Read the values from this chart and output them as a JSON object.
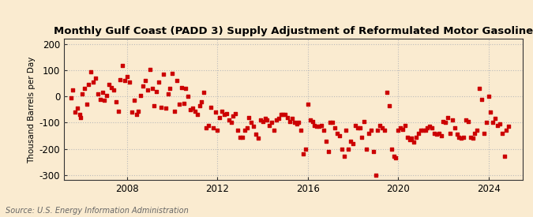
{
  "title": "Monthly Gulf Coast (PADD 3) Supply Adjustment of Reformulated Motor Gasoline",
  "ylabel": "Thousand Barrels per Day",
  "source": "Source: U.S. Energy Information Administration",
  "background_color": "#faebd0",
  "dot_color": "#cc0000",
  "grid_color": "#bbbbbb",
  "ylim": [
    -320,
    220
  ],
  "yticks": [
    -300,
    -200,
    -100,
    0,
    100,
    200
  ],
  "xlim_start": 2005.2,
  "xlim_end": 2025.5,
  "xticks": [
    2008,
    2012,
    2016,
    2020,
    2024
  ],
  "data": [
    [
      2005.5,
      -5
    ],
    [
      2005.6,
      25
    ],
    [
      2005.7,
      -60
    ],
    [
      2005.8,
      -45
    ],
    [
      2005.9,
      -70
    ],
    [
      2005.95,
      -80
    ],
    [
      2006.0,
      10
    ],
    [
      2006.1,
      30
    ],
    [
      2006.2,
      -30
    ],
    [
      2006.3,
      45
    ],
    [
      2006.4,
      95
    ],
    [
      2006.5,
      55
    ],
    [
      2006.6,
      70
    ],
    [
      2006.7,
      10
    ],
    [
      2006.8,
      -10
    ],
    [
      2006.9,
      15
    ],
    [
      2007.0,
      -15
    ],
    [
      2007.1,
      5
    ],
    [
      2007.2,
      45
    ],
    [
      2007.3,
      35
    ],
    [
      2007.4,
      25
    ],
    [
      2007.5,
      -20
    ],
    [
      2007.6,
      -55
    ],
    [
      2007.7,
      65
    ],
    [
      2007.8,
      120
    ],
    [
      2007.9,
      60
    ],
    [
      2008.0,
      75
    ],
    [
      2008.1,
      55
    ],
    [
      2008.2,
      -60
    ],
    [
      2008.3,
      -15
    ],
    [
      2008.4,
      -70
    ],
    [
      2008.5,
      -55
    ],
    [
      2008.6,
      5
    ],
    [
      2008.7,
      40
    ],
    [
      2008.8,
      60
    ],
    [
      2008.9,
      25
    ],
    [
      2009.0,
      105
    ],
    [
      2009.1,
      30
    ],
    [
      2009.2,
      -35
    ],
    [
      2009.3,
      20
    ],
    [
      2009.4,
      55
    ],
    [
      2009.5,
      -40
    ],
    [
      2009.6,
      85
    ],
    [
      2009.7,
      -45
    ],
    [
      2009.8,
      10
    ],
    [
      2009.9,
      30
    ],
    [
      2010.0,
      90
    ],
    [
      2010.1,
      -55
    ],
    [
      2010.2,
      60
    ],
    [
      2010.3,
      -30
    ],
    [
      2010.4,
      35
    ],
    [
      2010.5,
      -25
    ],
    [
      2010.6,
      30
    ],
    [
      2010.7,
      0
    ],
    [
      2010.8,
      -50
    ],
    [
      2010.9,
      -45
    ],
    [
      2011.0,
      -55
    ],
    [
      2011.1,
      -70
    ],
    [
      2011.2,
      -35
    ],
    [
      2011.3,
      -20
    ],
    [
      2011.4,
      15
    ],
    [
      2011.5,
      -120
    ],
    [
      2011.6,
      -110
    ],
    [
      2011.7,
      -40
    ],
    [
      2011.8,
      -120
    ],
    [
      2011.9,
      -60
    ],
    [
      2012.0,
      -130
    ],
    [
      2012.1,
      -80
    ],
    [
      2012.2,
      -55
    ],
    [
      2012.3,
      -70
    ],
    [
      2012.4,
      -65
    ],
    [
      2012.5,
      -90
    ],
    [
      2012.6,
      -100
    ],
    [
      2012.7,
      -75
    ],
    [
      2012.8,
      -65
    ],
    [
      2012.9,
      -130
    ],
    [
      2013.0,
      -155
    ],
    [
      2013.1,
      -155
    ],
    [
      2013.2,
      -130
    ],
    [
      2013.3,
      -120
    ],
    [
      2013.4,
      -80
    ],
    [
      2013.5,
      -100
    ],
    [
      2013.6,
      -115
    ],
    [
      2013.7,
      -145
    ],
    [
      2013.8,
      -160
    ],
    [
      2013.9,
      -90
    ],
    [
      2014.0,
      -95
    ],
    [
      2014.1,
      -85
    ],
    [
      2014.2,
      -90
    ],
    [
      2014.3,
      -110
    ],
    [
      2014.4,
      -100
    ],
    [
      2014.5,
      -130
    ],
    [
      2014.6,
      -90
    ],
    [
      2014.7,
      -85
    ],
    [
      2014.8,
      -70
    ],
    [
      2014.9,
      -70
    ],
    [
      2015.0,
      -70
    ],
    [
      2015.1,
      -80
    ],
    [
      2015.2,
      -95
    ],
    [
      2015.3,
      -85
    ],
    [
      2015.4,
      -100
    ],
    [
      2015.5,
      -105
    ],
    [
      2015.6,
      -100
    ],
    [
      2015.7,
      -130
    ],
    [
      2015.8,
      -220
    ],
    [
      2015.9,
      -200
    ],
    [
      2016.0,
      -30
    ],
    [
      2016.1,
      -90
    ],
    [
      2016.2,
      -95
    ],
    [
      2016.3,
      -110
    ],
    [
      2016.4,
      -115
    ],
    [
      2016.5,
      -115
    ],
    [
      2016.6,
      -110
    ],
    [
      2016.7,
      -130
    ],
    [
      2016.8,
      -170
    ],
    [
      2016.9,
      -210
    ],
    [
      2017.0,
      -100
    ],
    [
      2017.1,
      -100
    ],
    [
      2017.2,
      -120
    ],
    [
      2017.3,
      -140
    ],
    [
      2017.4,
      -150
    ],
    [
      2017.5,
      -200
    ],
    [
      2017.6,
      -230
    ],
    [
      2017.7,
      -130
    ],
    [
      2017.8,
      -200
    ],
    [
      2017.9,
      -170
    ],
    [
      2018.0,
      -180
    ],
    [
      2018.1,
      -110
    ],
    [
      2018.2,
      -120
    ],
    [
      2018.3,
      -120
    ],
    [
      2018.4,
      -155
    ],
    [
      2018.5,
      -95
    ],
    [
      2018.6,
      -200
    ],
    [
      2018.7,
      -140
    ],
    [
      2018.8,
      -130
    ],
    [
      2018.9,
      -210
    ],
    [
      2019.0,
      -300
    ],
    [
      2019.1,
      -130
    ],
    [
      2019.2,
      -110
    ],
    [
      2019.3,
      -120
    ],
    [
      2019.4,
      -130
    ],
    [
      2019.5,
      15
    ],
    [
      2019.6,
      -35
    ],
    [
      2019.7,
      -200
    ],
    [
      2019.8,
      -230
    ],
    [
      2019.9,
      -235
    ],
    [
      2020.0,
      -130
    ],
    [
      2020.1,
      -120
    ],
    [
      2020.2,
      -125
    ],
    [
      2020.3,
      -110
    ],
    [
      2020.4,
      -155
    ],
    [
      2020.5,
      -165
    ],
    [
      2020.6,
      -160
    ],
    [
      2020.7,
      -175
    ],
    [
      2020.8,
      -155
    ],
    [
      2020.9,
      -140
    ],
    [
      2021.0,
      -130
    ],
    [
      2021.1,
      -130
    ],
    [
      2021.2,
      -130
    ],
    [
      2021.3,
      -120
    ],
    [
      2021.4,
      -115
    ],
    [
      2021.5,
      -120
    ],
    [
      2021.6,
      -140
    ],
    [
      2021.7,
      -145
    ],
    [
      2021.8,
      -140
    ],
    [
      2021.9,
      -150
    ],
    [
      2022.0,
      -95
    ],
    [
      2022.1,
      -100
    ],
    [
      2022.2,
      -80
    ],
    [
      2022.3,
      -140
    ],
    [
      2022.4,
      -90
    ],
    [
      2022.5,
      -120
    ],
    [
      2022.6,
      -145
    ],
    [
      2022.7,
      -155
    ],
    [
      2022.8,
      -160
    ],
    [
      2022.9,
      -155
    ],
    [
      2023.0,
      -90
    ],
    [
      2023.1,
      -95
    ],
    [
      2023.2,
      -155
    ],
    [
      2023.3,
      -160
    ],
    [
      2023.4,
      -140
    ],
    [
      2023.5,
      -130
    ],
    [
      2023.6,
      30
    ],
    [
      2023.7,
      -10
    ],
    [
      2023.8,
      -140
    ],
    [
      2023.9,
      -100
    ],
    [
      2024.0,
      0
    ],
    [
      2024.1,
      -60
    ],
    [
      2024.2,
      -100
    ],
    [
      2024.3,
      -85
    ],
    [
      2024.4,
      -110
    ],
    [
      2024.5,
      -105
    ],
    [
      2024.6,
      -140
    ],
    [
      2024.7,
      -230
    ],
    [
      2024.8,
      -130
    ],
    [
      2024.9,
      -115
    ]
  ]
}
